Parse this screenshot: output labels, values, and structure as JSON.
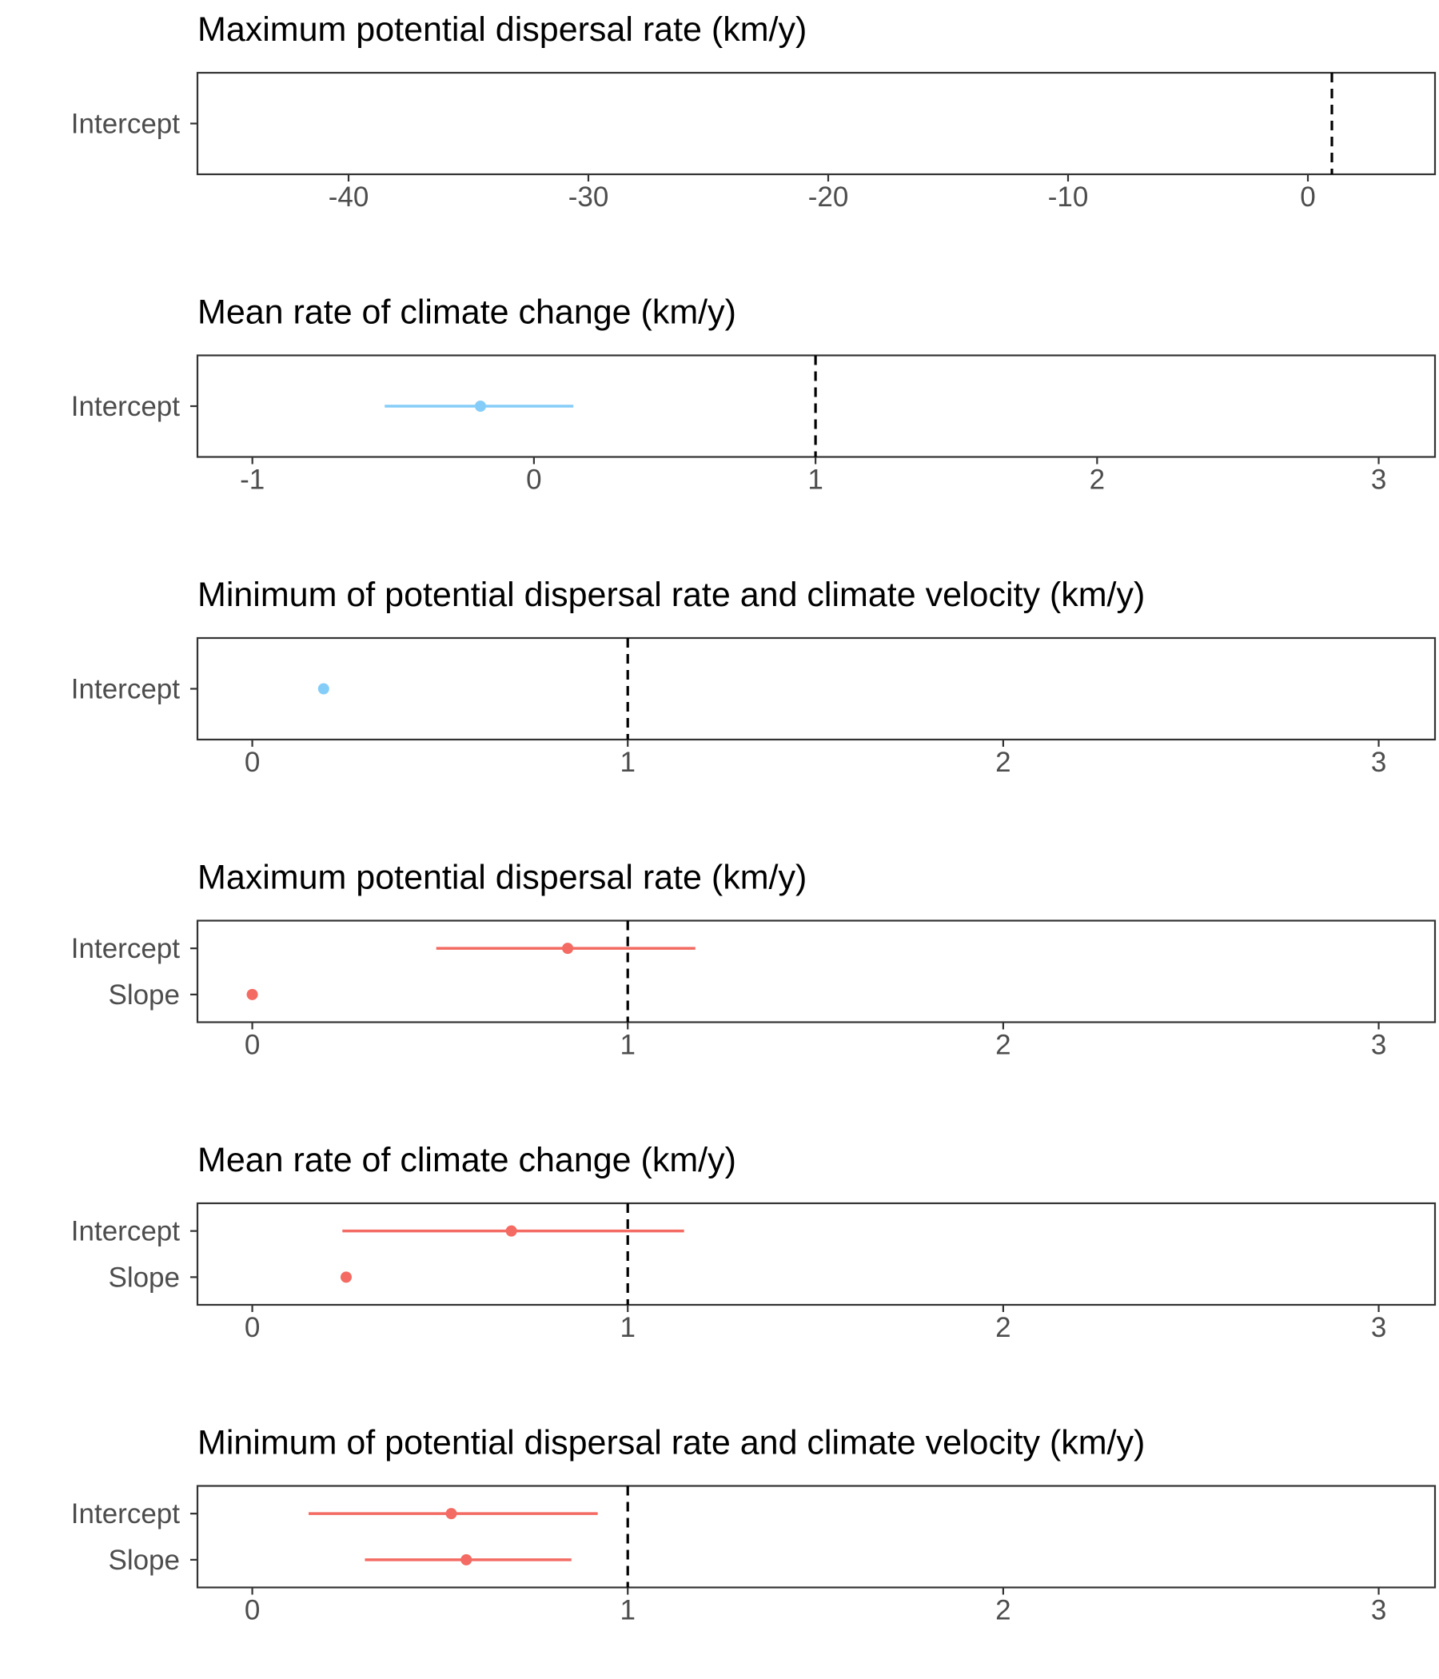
{
  "colors": {
    "blue": "#85CDF9",
    "red": "#F36B63",
    "reference_line": "#000000",
    "frame": "#333333",
    "tick_label": "#4d4d4d"
  },
  "chart_data": [
    {
      "type": "scatter",
      "title": "Maximum potential dispersal rate (km/y)",
      "xlabel": "",
      "ylabel": "",
      "xlim": [
        -46.3,
        5.3
      ],
      "xticks": [
        -40,
        -30,
        -20,
        -10,
        0
      ],
      "xtick_labels": [
        "-40",
        "-30",
        "-20",
        "-10",
        "0"
      ],
      "reference_line": 1,
      "categories": [
        "Intercept"
      ],
      "series": [
        {
          "color": "blue",
          "points": []
        }
      ],
      "grid": false
    },
    {
      "type": "scatter",
      "title": "Mean rate of climate change (km/y)",
      "xlabel": "",
      "ylabel": "",
      "xlim": [
        -1.195,
        3.2
      ],
      "xticks": [
        -1,
        0,
        1,
        2,
        3
      ],
      "xtick_labels": [
        "-1",
        "0",
        "1",
        "2",
        "3"
      ],
      "reference_line": 1,
      "categories": [
        "Intercept"
      ],
      "series": [
        {
          "color": "blue",
          "points": [
            {
              "category": "Intercept",
              "estimate": -0.19,
              "lower": -0.53,
              "upper": 0.14
            }
          ]
        }
      ],
      "grid": false
    },
    {
      "type": "scatter",
      "title": "Minimum of potential dispersal rate and climate velocity (km/y)",
      "xlabel": "",
      "ylabel": "",
      "xlim": [
        -0.146,
        3.15
      ],
      "xticks": [
        0,
        1,
        2,
        3
      ],
      "xtick_labels": [
        "0",
        "1",
        "2",
        "3"
      ],
      "reference_line": 1,
      "categories": [
        "Intercept"
      ],
      "series": [
        {
          "color": "blue",
          "points": [
            {
              "category": "Intercept",
              "estimate": 0.19
            }
          ]
        }
      ],
      "grid": false
    },
    {
      "type": "scatter",
      "title": "Maximum potential dispersal rate (km/y)",
      "xlabel": "",
      "ylabel": "",
      "xlim": [
        -0.146,
        3.15
      ],
      "xticks": [
        0,
        1,
        2,
        3
      ],
      "xtick_labels": [
        "0",
        "1",
        "2",
        "3"
      ],
      "reference_line": 1,
      "categories": [
        "Intercept",
        "Slope"
      ],
      "series": [
        {
          "color": "red",
          "points": [
            {
              "category": "Intercept",
              "estimate": 0.84,
              "lower": 0.49,
              "upper": 1.18
            },
            {
              "category": "Slope",
              "estimate": 0.0
            }
          ]
        }
      ],
      "grid": false
    },
    {
      "type": "scatter",
      "title": "Mean rate of climate change (km/y)",
      "xlabel": "",
      "ylabel": "",
      "xlim": [
        -0.146,
        3.15
      ],
      "xticks": [
        0,
        1,
        2,
        3
      ],
      "xtick_labels": [
        "0",
        "1",
        "2",
        "3"
      ],
      "reference_line": 1,
      "categories": [
        "Intercept",
        "Slope"
      ],
      "series": [
        {
          "color": "red",
          "points": [
            {
              "category": "Intercept",
              "estimate": 0.69,
              "lower": 0.24,
              "upper": 1.15
            },
            {
              "category": "Slope",
              "estimate": 0.25
            }
          ]
        }
      ],
      "grid": false
    },
    {
      "type": "scatter",
      "title": "Minimum of potential dispersal rate and climate velocity (km/y)",
      "xlabel": "",
      "ylabel": "",
      "xlim": [
        -0.146,
        3.15
      ],
      "xticks": [
        0,
        1,
        2,
        3
      ],
      "xtick_labels": [
        "0",
        "1",
        "2",
        "3"
      ],
      "reference_line": 1,
      "categories": [
        "Intercept",
        "Slope"
      ],
      "series": [
        {
          "color": "red",
          "points": [
            {
              "category": "Intercept",
              "estimate": 0.53,
              "lower": 0.15,
              "upper": 0.92
            },
            {
              "category": "Slope",
              "estimate": 0.57,
              "lower": 0.3,
              "upper": 0.85
            }
          ]
        }
      ],
      "grid": false
    }
  ]
}
